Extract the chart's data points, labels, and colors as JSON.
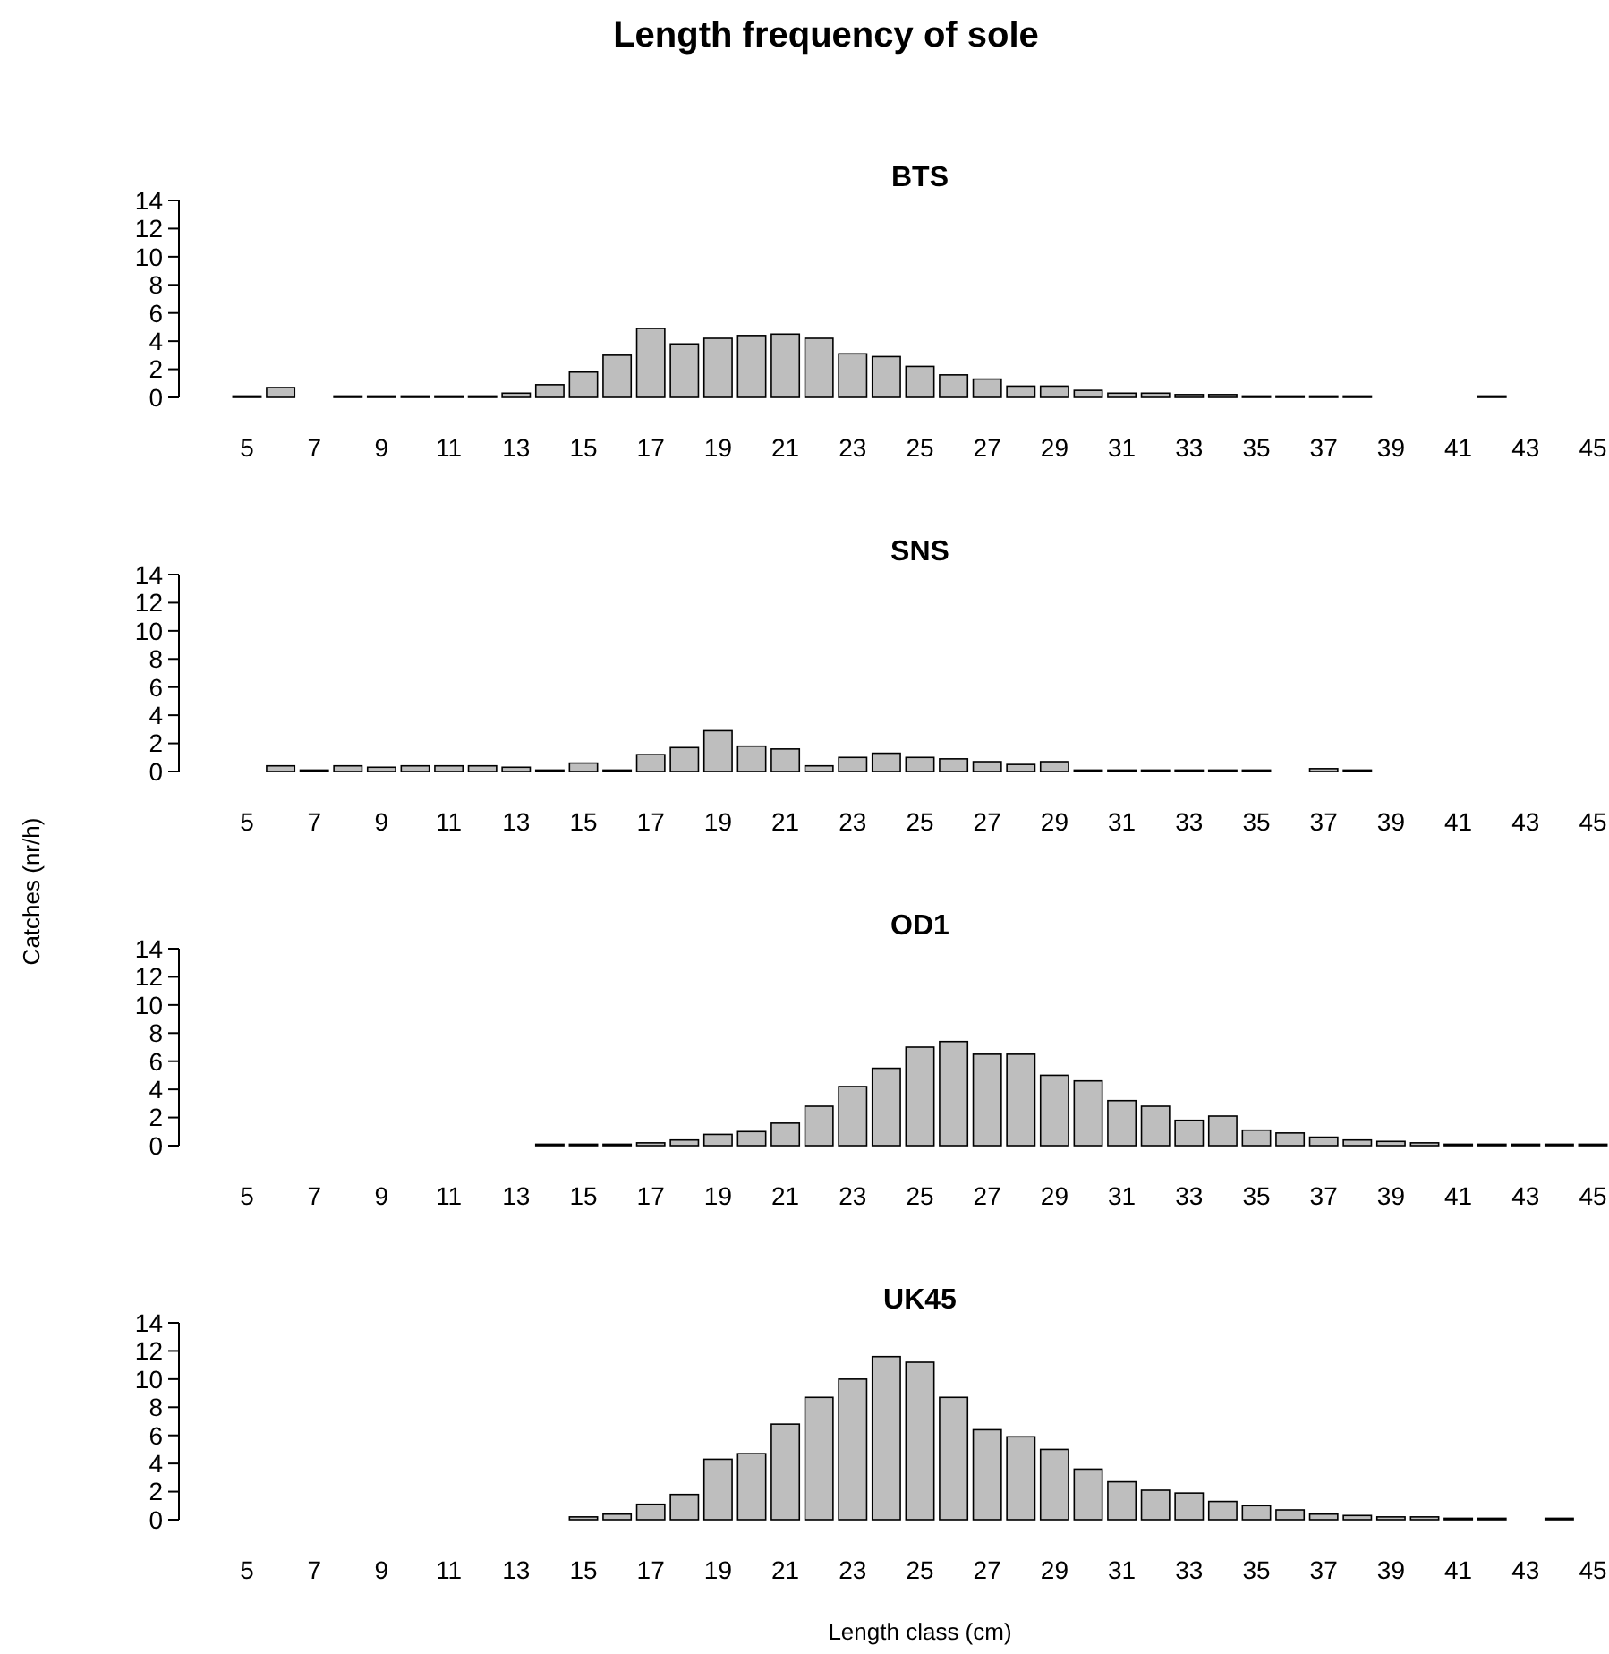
{
  "chart_data": [
    {
      "type": "bar",
      "title": "BTS",
      "annotations": [
        "Length frequency of sole"
      ],
      "color": "#bebebe",
      "categories": [
        "5",
        null,
        "7",
        null,
        "9",
        null,
        "11",
        null,
        "13",
        null,
        "15",
        null,
        "17",
        null,
        "19",
        null,
        "21",
        null,
        "23",
        null,
        "25",
        null,
        "27",
        null,
        "29",
        null,
        "31",
        null,
        "33",
        null,
        "35",
        null,
        "37",
        null,
        "39",
        null,
        "41",
        null,
        "43",
        null,
        "45"
      ],
      "values": [
        0.1,
        0.7,
        0,
        0.1,
        0.1,
        0.1,
        0.1,
        0.1,
        0.3,
        0.9,
        1.8,
        3.0,
        4.9,
        3.8,
        4.2,
        4.4,
        4.5,
        4.2,
        3.1,
        2.9,
        2.2,
        1.6,
        1.3,
        0.8,
        0.8,
        0.5,
        0.3,
        0.3,
        0.2,
        0.2,
        0.1,
        0.1,
        0.1,
        0.1,
        0,
        0,
        0,
        0.1,
        0,
        0,
        0
      ],
      "ylim": [
        0,
        14
      ],
      "yticks": [
        0,
        2,
        4,
        6,
        8,
        10,
        12,
        14
      ]
    },
    {
      "type": "bar",
      "title": "SNS",
      "ylabel": "Catches (nr/h)",
      "color": "#bebebe",
      "categories": [
        "5",
        null,
        "7",
        null,
        "9",
        null,
        "11",
        null,
        "13",
        null,
        "15",
        null,
        "17",
        null,
        "19",
        null,
        "21",
        null,
        "23",
        null,
        "25",
        null,
        "27",
        null,
        "29",
        null,
        "31",
        null,
        "33",
        null,
        "35",
        null,
        "37",
        null,
        "39",
        null,
        "41",
        null,
        "43",
        null,
        "45"
      ],
      "values": [
        0,
        0.4,
        0.1,
        0.4,
        0.3,
        0.4,
        0.4,
        0.4,
        0.3,
        0.1,
        0.6,
        0.1,
        1.2,
        1.7,
        2.9,
        1.8,
        1.6,
        0.4,
        1.0,
        1.3,
        1.0,
        0.9,
        0.7,
        0.5,
        0.7,
        0.1,
        0.1,
        0.1,
        0.1,
        0.1,
        0.1,
        0,
        0.2,
        0.1,
        0,
        0,
        0,
        0,
        0,
        0,
        0
      ],
      "ylim": [
        0,
        14
      ],
      "yticks": [
        0,
        2,
        4,
        6,
        8,
        10,
        12,
        14
      ]
    },
    {
      "type": "bar",
      "title": "OD1",
      "color": "#bebebe",
      "categories": [
        "5",
        null,
        "7",
        null,
        "9",
        null,
        "11",
        null,
        "13",
        null,
        "15",
        null,
        "17",
        null,
        "19",
        null,
        "21",
        null,
        "23",
        null,
        "25",
        null,
        "27",
        null,
        "29",
        null,
        "31",
        null,
        "33",
        null,
        "35",
        null,
        "37",
        null,
        "39",
        null,
        "41",
        null,
        "43",
        null,
        "45"
      ],
      "values": [
        0,
        0,
        0,
        0,
        0,
        0,
        0,
        0,
        0,
        0.1,
        0.1,
        0.1,
        0.2,
        0.4,
        0.8,
        1.0,
        1.6,
        2.8,
        4.2,
        5.5,
        7.0,
        7.4,
        6.5,
        6.5,
        5.0,
        4.6,
        3.2,
        2.8,
        1.8,
        2.1,
        1.1,
        0.9,
        0.6,
        0.4,
        0.3,
        0.2,
        0.1,
        0.1,
        0.1,
        0.1,
        0.1
      ],
      "ylim": [
        0,
        14
      ],
      "yticks": [
        0,
        2,
        4,
        6,
        8,
        10,
        12,
        14
      ]
    },
    {
      "type": "bar",
      "title": "UK45",
      "xlabel": "Length class (cm)",
      "color": "#bebebe",
      "categories": [
        "5",
        null,
        "7",
        null,
        "9",
        null,
        "11",
        null,
        "13",
        null,
        "15",
        null,
        "17",
        null,
        "19",
        null,
        "21",
        null,
        "23",
        null,
        "25",
        null,
        "27",
        null,
        "29",
        null,
        "31",
        null,
        "33",
        null,
        "35",
        null,
        "37",
        null,
        "39",
        null,
        "41",
        null,
        "43",
        null,
        "45"
      ],
      "values": [
        0,
        0,
        0,
        0,
        0,
        0,
        0,
        0,
        0,
        0,
        0.2,
        0.4,
        1.1,
        1.8,
        4.3,
        4.7,
        6.8,
        8.7,
        10.0,
        11.6,
        11.2,
        8.7,
        6.4,
        5.9,
        5.0,
        3.6,
        2.7,
        2.1,
        1.9,
        1.3,
        1.0,
        0.7,
        0.4,
        0.3,
        0.2,
        0.2,
        0.1,
        0.1,
        0,
        0.1,
        0
      ],
      "ylim": [
        0,
        14
      ],
      "yticks": [
        0,
        2,
        4,
        6,
        8,
        10,
        12,
        14
      ]
    }
  ]
}
